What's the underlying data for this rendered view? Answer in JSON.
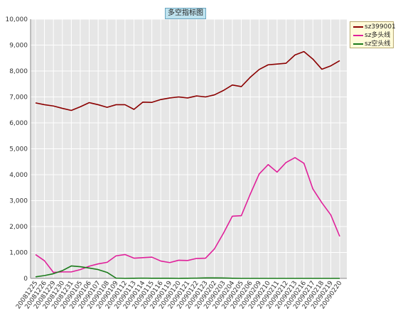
{
  "colors": {
    "plot_bg": "#e6e6e6",
    "grid": "#ffffff",
    "axis": "#888888"
  },
  "chart_data": {
    "type": "line",
    "title": "多空指标图",
    "ylim": [
      0,
      10000
    ],
    "yticks": [
      "0",
      "1,000",
      "2,000",
      "3,000",
      "4,000",
      "5,000",
      "6,000",
      "7,000",
      "8,000",
      "9,000",
      "10,000"
    ],
    "ytick_values": [
      0,
      1000,
      2000,
      3000,
      4000,
      5000,
      6000,
      7000,
      8000,
      9000,
      10000
    ],
    "grid": true,
    "legend_position": "top-right",
    "categories": [
      "20081225",
      "20081226",
      "20081229",
      "20081230",
      "20081231",
      "20090105",
      "20090106",
      "20090107",
      "20090108",
      "20090109",
      "20090112",
      "20090113",
      "20090114",
      "20090115",
      "20090116",
      "20090119",
      "20090120",
      "20090121",
      "20090122",
      "20090123",
      "20090202",
      "20090203",
      "20090204",
      "20090205",
      "20090206",
      "20090209",
      "20090210",
      "20090211",
      "20090212",
      "20090213",
      "20090216",
      "20090217",
      "20090218",
      "20090219",
      "20090220"
    ],
    "series": [
      {
        "name": "sz399001",
        "color": "#8b0000",
        "values": [
          6770,
          6700,
          6650,
          6560,
          6480,
          6620,
          6780,
          6700,
          6600,
          6700,
          6700,
          6520,
          6800,
          6790,
          6900,
          6960,
          7000,
          6960,
          7040,
          7000,
          7080,
          7250,
          7460,
          7400,
          7760,
          8060,
          8240,
          8270,
          8300,
          8620,
          8750,
          8460,
          8070,
          8200,
          8400
        ]
      },
      {
        "name": "sz多头线",
        "color": "#e0209a",
        "values": [
          920,
          680,
          230,
          250,
          250,
          340,
          470,
          560,
          620,
          870,
          920,
          780,
          800,
          820,
          670,
          610,
          700,
          690,
          770,
          780,
          1140,
          1740,
          2400,
          2420,
          3250,
          4030,
          4390,
          4100,
          4470,
          4660,
          4440,
          3450,
          2920,
          2450,
          1620
        ]
      },
      {
        "name": "sz空头线",
        "color": "#1a7a1a",
        "values": [
          60,
          110,
          180,
          300,
          480,
          450,
          400,
          340,
          230,
          10,
          0,
          5,
          10,
          5,
          5,
          5,
          0,
          5,
          10,
          20,
          20,
          15,
          5,
          0,
          0,
          0,
          0,
          0,
          0,
          0,
          0,
          0,
          0,
          0,
          0
        ]
      }
    ]
  }
}
